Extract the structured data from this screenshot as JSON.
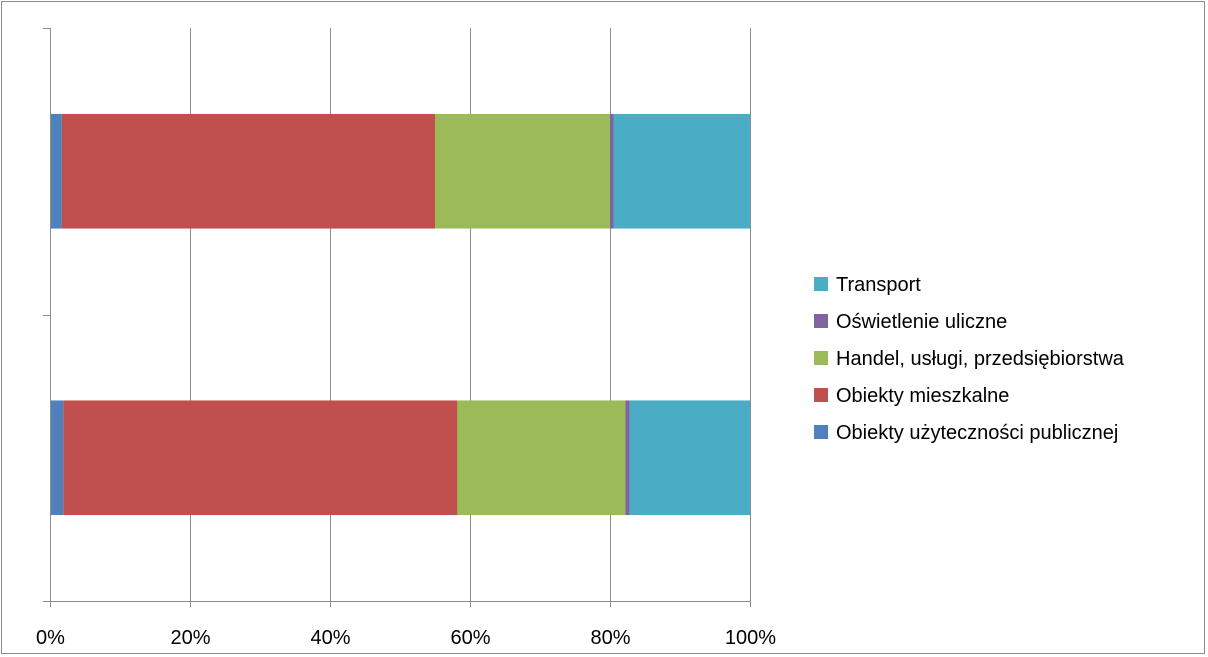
{
  "chart_data": {
    "type": "bar",
    "orientation": "horizontal",
    "stacked": "percent",
    "categories": [
      "",
      ""
    ],
    "series": [
      {
        "name": "Obiekty użyteczności publicznej",
        "color": "#4f81bd",
        "values": [
          1.9,
          1.7
        ]
      },
      {
        "name": "Obiekty mieszkalne",
        "color": "#c0504d",
        "values": [
          56.3,
          53.3
        ]
      },
      {
        "name": "Handel, usługi, przedsiębiorstwa",
        "color": "#9bbb59",
        "values": [
          24.0,
          25.0
        ]
      },
      {
        "name": "Oświetlenie uliczne",
        "color": "#8064a2",
        "values": [
          0.6,
          0.5
        ]
      },
      {
        "name": "Transport",
        "color": "#4bacc6",
        "values": [
          17.2,
          19.5
        ]
      }
    ],
    "x_ticks": [
      "0%",
      "20%",
      "40%",
      "60%",
      "80%",
      "100%"
    ],
    "xlim": [
      0,
      100
    ],
    "grid": true,
    "legend_position": "right",
    "legend_order": [
      "Transport",
      "Oświetlenie uliczne",
      "Handel, usługi, przedsiębiorstwa",
      "Obiekty mieszkalne",
      "Obiekty użyteczności publicznej"
    ],
    "title": "",
    "xlabel": "",
    "ylabel": ""
  }
}
